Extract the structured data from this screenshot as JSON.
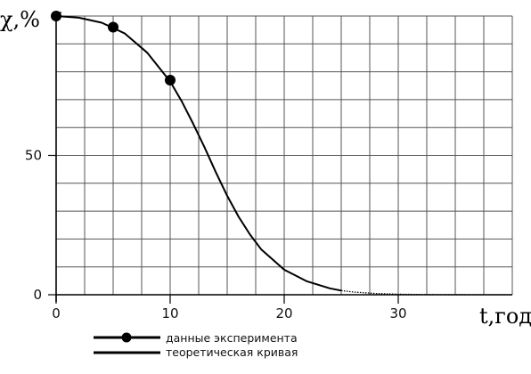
{
  "chart_data": {
    "type": "line",
    "title": "",
    "xlabel": "t,год",
    "ylabel": "χ,%",
    "xlim": [
      0,
      40
    ],
    "ylim": [
      0,
      100
    ],
    "xticks": [
      "0",
      "10",
      "20",
      "30"
    ],
    "yticks": [
      "0",
      "50"
    ],
    "grid": true,
    "legend_position": "bottom-left",
    "series": [
      {
        "name": "данные эксперимента",
        "kind": "scatter",
        "color": "#000000",
        "x": [
          0,
          5,
          10
        ],
        "y": [
          100,
          96,
          77
        ]
      },
      {
        "name": "теоретическая кривая",
        "kind": "line",
        "color": "#000000",
        "x": [
          0,
          2,
          4,
          6,
          8,
          10,
          11,
          12,
          13,
          14,
          15,
          16,
          17,
          18,
          20,
          22,
          24,
          25,
          26,
          28,
          30,
          32,
          34,
          36,
          38,
          40
        ],
        "y": [
          100,
          99.4,
          97.6,
          93.8,
          86.8,
          76.5,
          69.5,
          61.5,
          53.0,
          44.0,
          35.5,
          28.0,
          21.6,
          16.2,
          9.0,
          4.8,
          2.3,
          1.5,
          1.0,
          0.45,
          0.2,
          0.08,
          0.03,
          0.01,
          0.0,
          0.0
        ]
      }
    ]
  }
}
